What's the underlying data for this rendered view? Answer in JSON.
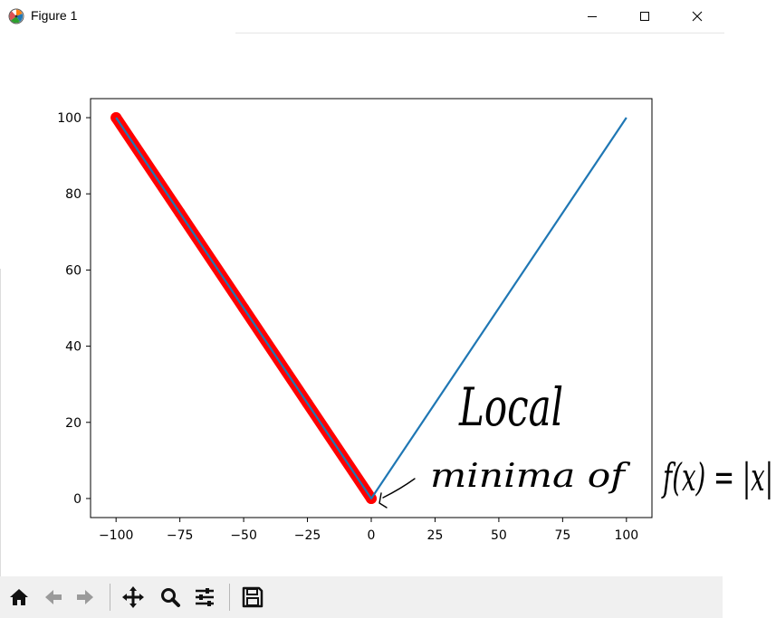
{
  "window": {
    "title": "Figure 1",
    "minimize_label": "minimize",
    "maximize_label": "maximize",
    "close_label": "close"
  },
  "toolbar": {
    "buttons": [
      {
        "name": "home-icon",
        "label": "Home"
      },
      {
        "name": "back-icon",
        "label": "Back"
      },
      {
        "name": "forward-icon",
        "label": "Forward"
      },
      {
        "name": "pan-icon",
        "label": "Pan"
      },
      {
        "name": "zoom-icon",
        "label": "Zoom"
      },
      {
        "name": "configure-subplots-icon",
        "label": "Configure subplots"
      },
      {
        "name": "save-icon",
        "label": "Save"
      }
    ]
  },
  "chart_data": {
    "type": "line",
    "title": "",
    "xlabel": "",
    "ylabel": "",
    "xlim": [
      -110,
      110
    ],
    "ylim": [
      -5,
      105
    ],
    "xticks": [
      -100,
      -75,
      -50,
      -25,
      0,
      25,
      50,
      75,
      100
    ],
    "yticks": [
      0,
      20,
      40,
      60,
      80,
      100
    ],
    "xtick_labels": [
      "−100",
      "−75",
      "−50",
      "−25",
      "0",
      "25",
      "50",
      "75",
      "100"
    ],
    "ytick_labels": [
      "0",
      "20",
      "40",
      "60",
      "80",
      "100"
    ],
    "grid": false,
    "series": [
      {
        "kind": "line",
        "color": "#1f77b4",
        "x": [
          -100,
          0,
          100
        ],
        "y": [
          100,
          0,
          100
        ]
      },
      {
        "kind": "markers",
        "color": "#ff0000",
        "x": [
          -100,
          -75,
          -50,
          -25,
          0
        ],
        "y": [
          100,
          75,
          50,
          25,
          0
        ]
      }
    ],
    "annotations": [
      {
        "text": "Local",
        "style": "handwritten"
      },
      {
        "text": "minima of",
        "style": "handwritten"
      },
      {
        "text": "f(x) = |x|",
        "style": "handwritten"
      }
    ]
  },
  "colors": {
    "line": "#1f77b4",
    "marker": "#ff0000",
    "toolbar_bg": "#f0f0f0"
  }
}
